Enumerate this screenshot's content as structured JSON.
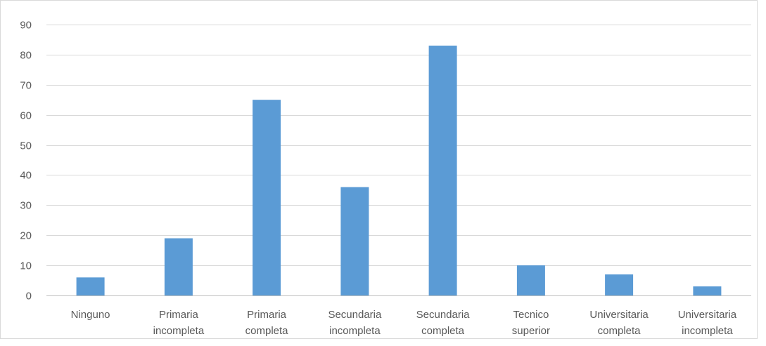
{
  "chart_data": {
    "type": "bar",
    "title": "",
    "xlabel": "",
    "ylabel": "",
    "ylim": [
      0,
      90
    ],
    "yticks": [
      0,
      10,
      20,
      30,
      40,
      50,
      60,
      70,
      80,
      90
    ],
    "grid": true,
    "legend": "none",
    "bar_color": "#5B9BD5",
    "categories": [
      [
        "Ninguno"
      ],
      [
        "Primaria",
        "incompleta"
      ],
      [
        "Primaria",
        "completa"
      ],
      [
        "Secundaria",
        "incompleta"
      ],
      [
        "Secundaria",
        "completa"
      ],
      [
        "Tecnico",
        "superior"
      ],
      [
        "Universitaria",
        "completa"
      ],
      [
        "Universitaria",
        "incompleta"
      ]
    ],
    "values": [
      6,
      19,
      65,
      36,
      83,
      10,
      7,
      3
    ]
  }
}
